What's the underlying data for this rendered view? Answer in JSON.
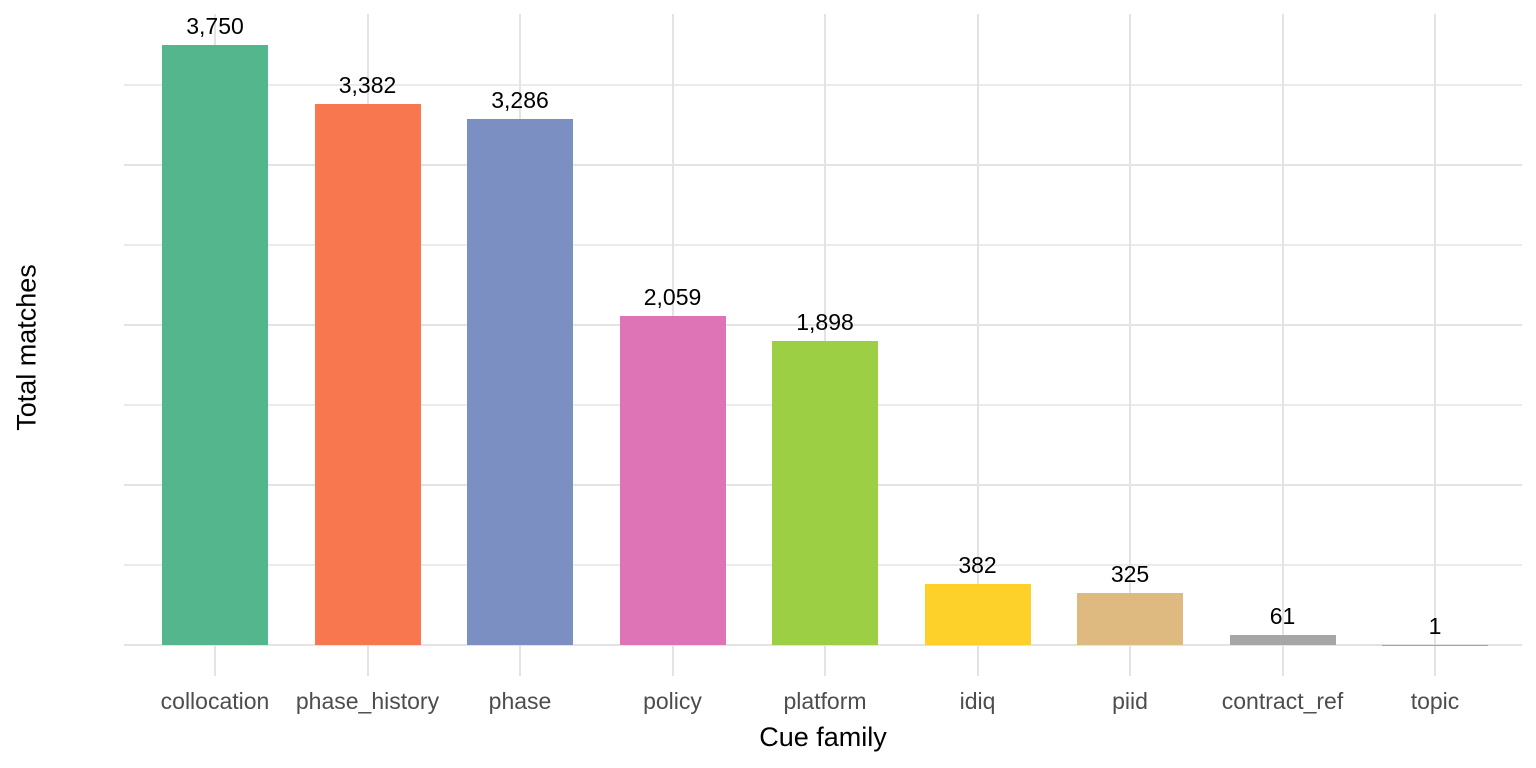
{
  "chart_data": {
    "type": "bar",
    "title": "",
    "xlabel": "Cue family",
    "ylabel": "Total matches",
    "categories": [
      "collocation",
      "phase_history",
      "phase",
      "policy",
      "platform",
      "idiq",
      "piid",
      "contract_ref",
      "topic"
    ],
    "values": [
      3750,
      3382,
      3286,
      2059,
      1898,
      382,
      325,
      61,
      1
    ],
    "value_labels": [
      "3,750",
      "3,382",
      "3,286",
      "2,059",
      "1,898",
      "382",
      "325",
      "61",
      "1"
    ],
    "bar_colors": [
      "#54B68C",
      "#F8774F",
      "#7C8FC3",
      "#DE73B5",
      "#9CCF43",
      "#FDD02A",
      "#DEBA80",
      "#A6A6A6",
      "#66C2A5"
    ],
    "y_ticks": [
      0,
      1000,
      2000,
      3000
    ],
    "y_minor_ticks": [
      500,
      1500,
      2500,
      3500
    ],
    "ylim": [
      0,
      3937
    ],
    "grid": "major-and-minor-horizontal, major-vertical-at-categories",
    "legend_position": "none",
    "colors": {
      "background": "#FFFFFF",
      "grid_major": "#E3E3E3",
      "grid_minor": "#EBEBEB",
      "tick_label": "#4D4D4D",
      "axis_title": "#000000",
      "bar_value_label": "#000000"
    }
  }
}
